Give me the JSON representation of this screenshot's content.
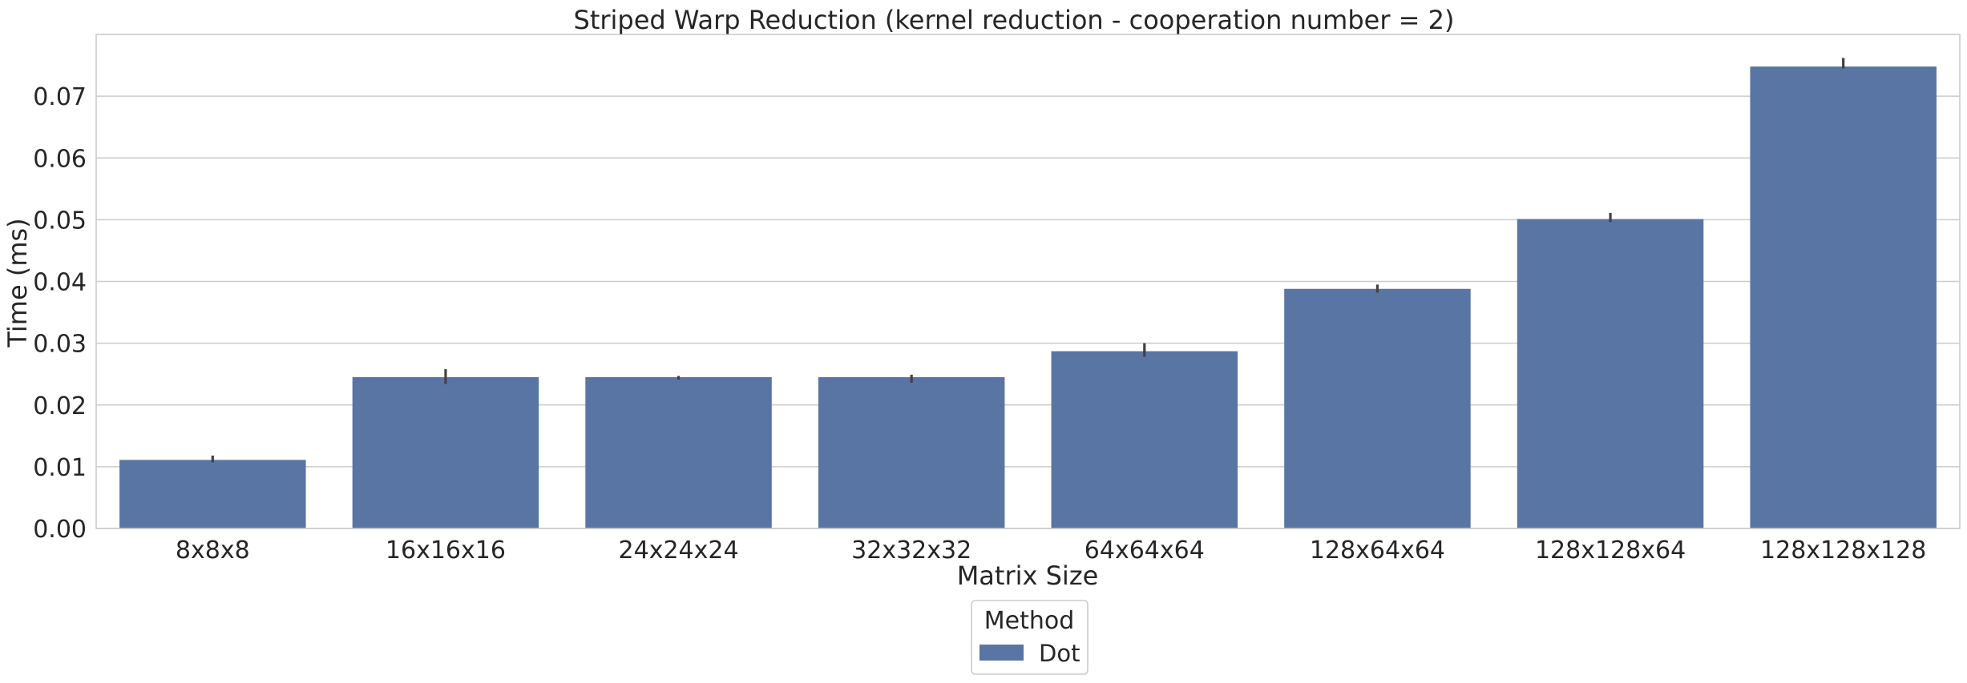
{
  "chart_data": {
    "type": "bar",
    "title": "Striped Warp Reduction (kernel reduction - cooperation number = 2)",
    "xlabel": "Matrix Size",
    "ylabel": "Time (ms)",
    "categories": [
      "8x8x8",
      "16x16x16",
      "24x24x24",
      "32x32x32",
      "64x64x64",
      "128x64x64",
      "128x128x64",
      "128x128x128"
    ],
    "series": [
      {
        "name": "Dot",
        "values": [
          0.0111,
          0.0245,
          0.0245,
          0.0245,
          0.0287,
          0.0388,
          0.0501,
          0.0748
        ],
        "error_low": [
          0.0107,
          0.0234,
          0.0241,
          0.0236,
          0.0278,
          0.0382,
          0.0496,
          0.0745
        ],
        "error_high": [
          0.0118,
          0.0258,
          0.0247,
          0.0249,
          0.03,
          0.0395,
          0.0511,
          0.0762
        ],
        "color": "#5975a4"
      }
    ],
    "ylim": [
      0,
      0.08
    ],
    "yticks": [
      "0.00",
      "0.01",
      "0.02",
      "0.03",
      "0.04",
      "0.05",
      "0.06",
      "0.07"
    ],
    "grid": true,
    "legend": {
      "title": "Method",
      "placement": "bottom-center",
      "entries": [
        "Dot"
      ]
    }
  }
}
